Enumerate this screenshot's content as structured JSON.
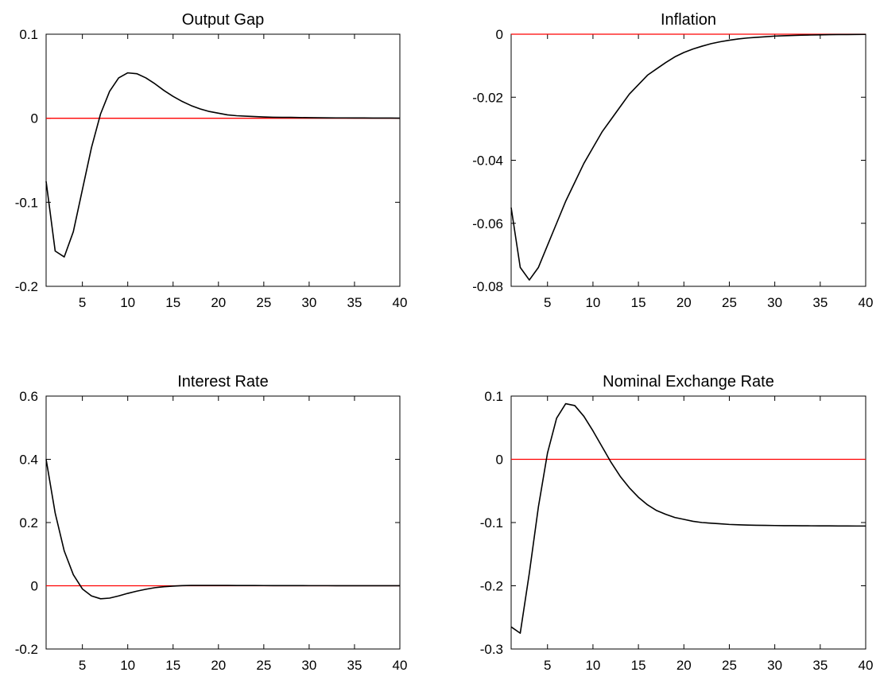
{
  "colors": {
    "series": "#000000",
    "zero_line": "#ff0000",
    "background": "#ffffff"
  },
  "chart_data": [
    {
      "type": "line",
      "title": "Output Gap",
      "xlabel": "",
      "ylabel": "",
      "xlim": [
        1,
        40
      ],
      "ylim": [
        -0.2,
        0.1
      ],
      "xticks": [
        5,
        10,
        15,
        20,
        25,
        30,
        35,
        40
      ],
      "yticks": [
        -0.2,
        -0.1,
        0,
        0.1
      ],
      "ytick_labels": [
        "-0.2",
        "-0.1",
        "0",
        "0.1"
      ],
      "grid": false,
      "reference_line": 0,
      "series": [
        {
          "x": [
            1,
            2,
            3,
            4,
            5,
            6,
            7,
            8,
            9,
            10,
            11,
            12,
            13,
            14,
            15,
            16,
            17,
            18,
            19,
            20,
            21,
            22,
            23,
            24,
            25,
            26,
            27,
            28,
            29,
            30,
            31,
            32,
            33,
            34,
            35,
            36,
            37,
            38,
            39,
            40
          ],
          "values": [
            -0.075,
            -0.158,
            -0.165,
            -0.135,
            -0.085,
            -0.035,
            0.005,
            0.032,
            0.048,
            0.054,
            0.053,
            0.048,
            0.041,
            0.033,
            0.026,
            0.02,
            0.015,
            0.011,
            0.008,
            0.006,
            0.004,
            0.003,
            0.0025,
            0.002,
            0.0015,
            0.0012,
            0.001,
            0.001,
            0.0008,
            0.0007,
            0.0006,
            0.0005,
            0.0004,
            0.0004,
            0.0003,
            0.0003,
            0.0002,
            0.0002,
            0.0002,
            0.0001
          ]
        }
      ]
    },
    {
      "type": "line",
      "title": "Inflation",
      "xlabel": "",
      "ylabel": "",
      "xlim": [
        1,
        40
      ],
      "ylim": [
        -0.08,
        0
      ],
      "xticks": [
        5,
        10,
        15,
        20,
        25,
        30,
        35,
        40
      ],
      "yticks": [
        -0.08,
        -0.06,
        -0.04,
        -0.02,
        0
      ],
      "ytick_labels": [
        "-0.08",
        "-0.06",
        "-0.04",
        "-0.02",
        "0"
      ],
      "grid": false,
      "reference_line": 0,
      "series": [
        {
          "x": [
            1,
            2,
            3,
            4,
            5,
            6,
            7,
            8,
            9,
            10,
            11,
            12,
            13,
            14,
            15,
            16,
            17,
            18,
            19,
            20,
            21,
            22,
            23,
            24,
            25,
            26,
            27,
            28,
            29,
            30,
            31,
            32,
            33,
            34,
            35,
            36,
            37,
            38,
            39,
            40
          ],
          "values": [
            -0.055,
            -0.074,
            -0.078,
            -0.074,
            -0.067,
            -0.06,
            -0.053,
            -0.047,
            -0.041,
            -0.036,
            -0.031,
            -0.027,
            -0.023,
            -0.019,
            -0.016,
            -0.013,
            -0.011,
            -0.009,
            -0.0072,
            -0.0058,
            -0.0047,
            -0.0038,
            -0.003,
            -0.0024,
            -0.0019,
            -0.0015,
            -0.0012,
            -0.001,
            -0.0008,
            -0.0006,
            -0.0005,
            -0.0004,
            -0.0003,
            -0.00025,
            -0.0002,
            -0.00015,
            -0.0001,
            -0.0001,
            -8e-05,
            -6e-05
          ]
        }
      ]
    },
    {
      "type": "line",
      "title": "Interest Rate",
      "xlabel": "",
      "ylabel": "",
      "xlim": [
        1,
        40
      ],
      "ylim": [
        -0.2,
        0.6
      ],
      "xticks": [
        5,
        10,
        15,
        20,
        25,
        30,
        35,
        40
      ],
      "yticks": [
        -0.2,
        0,
        0.2,
        0.4,
        0.6
      ],
      "ytick_labels": [
        "-0.2",
        "0",
        "0.2",
        "0.4",
        "0.6"
      ],
      "grid": false,
      "reference_line": 0,
      "series": [
        {
          "x": [
            1,
            2,
            3,
            4,
            5,
            6,
            7,
            8,
            9,
            10,
            11,
            12,
            13,
            14,
            15,
            16,
            17,
            18,
            19,
            20,
            21,
            22,
            23,
            24,
            25,
            26,
            27,
            28,
            29,
            30,
            31,
            32,
            33,
            34,
            35,
            36,
            37,
            38,
            39,
            40
          ],
          "values": [
            0.4,
            0.23,
            0.11,
            0.035,
            -0.01,
            -0.032,
            -0.041,
            -0.039,
            -0.032,
            -0.024,
            -0.017,
            -0.011,
            -0.006,
            -0.003,
            -0.001,
            0.0005,
            0.001,
            0.0012,
            0.0012,
            0.0011,
            0.001,
            0.0009,
            0.0008,
            0.0007,
            0.0006,
            0.0005,
            0.0005,
            0.0004,
            0.0004,
            0.0003,
            0.0003,
            0.0003,
            0.0002,
            0.0002,
            0.0002,
            0.0002,
            0.0001,
            0.0001,
            0.0001,
            0.0001
          ]
        }
      ]
    },
    {
      "type": "line",
      "title": "Nominal Exchange Rate",
      "xlabel": "",
      "ylabel": "",
      "xlim": [
        1,
        40
      ],
      "ylim": [
        -0.3,
        0.1
      ],
      "xticks": [
        5,
        10,
        15,
        20,
        25,
        30,
        35,
        40
      ],
      "yticks": [
        -0.3,
        -0.2,
        -0.1,
        0,
        0.1
      ],
      "ytick_labels": [
        "-0.3",
        "-0.2",
        "-0.1",
        "0",
        "0.1"
      ],
      "grid": false,
      "reference_line": 0,
      "series": [
        {
          "x": [
            1,
            2,
            3,
            4,
            5,
            6,
            7,
            8,
            9,
            10,
            11,
            12,
            13,
            14,
            15,
            16,
            17,
            18,
            19,
            20,
            21,
            22,
            23,
            24,
            25,
            26,
            27,
            28,
            29,
            30,
            31,
            32,
            33,
            34,
            35,
            36,
            37,
            38,
            39,
            40
          ],
          "values": [
            -0.265,
            -0.275,
            -0.18,
            -0.075,
            0.01,
            0.065,
            0.088,
            0.085,
            0.068,
            0.045,
            0.02,
            -0.005,
            -0.027,
            -0.045,
            -0.06,
            -0.072,
            -0.081,
            -0.087,
            -0.092,
            -0.095,
            -0.098,
            -0.1,
            -0.101,
            -0.102,
            -0.103,
            -0.1035,
            -0.104,
            -0.1043,
            -0.1045,
            -0.1047,
            -0.1049,
            -0.105,
            -0.1051,
            -0.1052,
            -0.1053,
            -0.1053,
            -0.1054,
            -0.1054,
            -0.1055,
            -0.1055
          ]
        }
      ]
    }
  ]
}
